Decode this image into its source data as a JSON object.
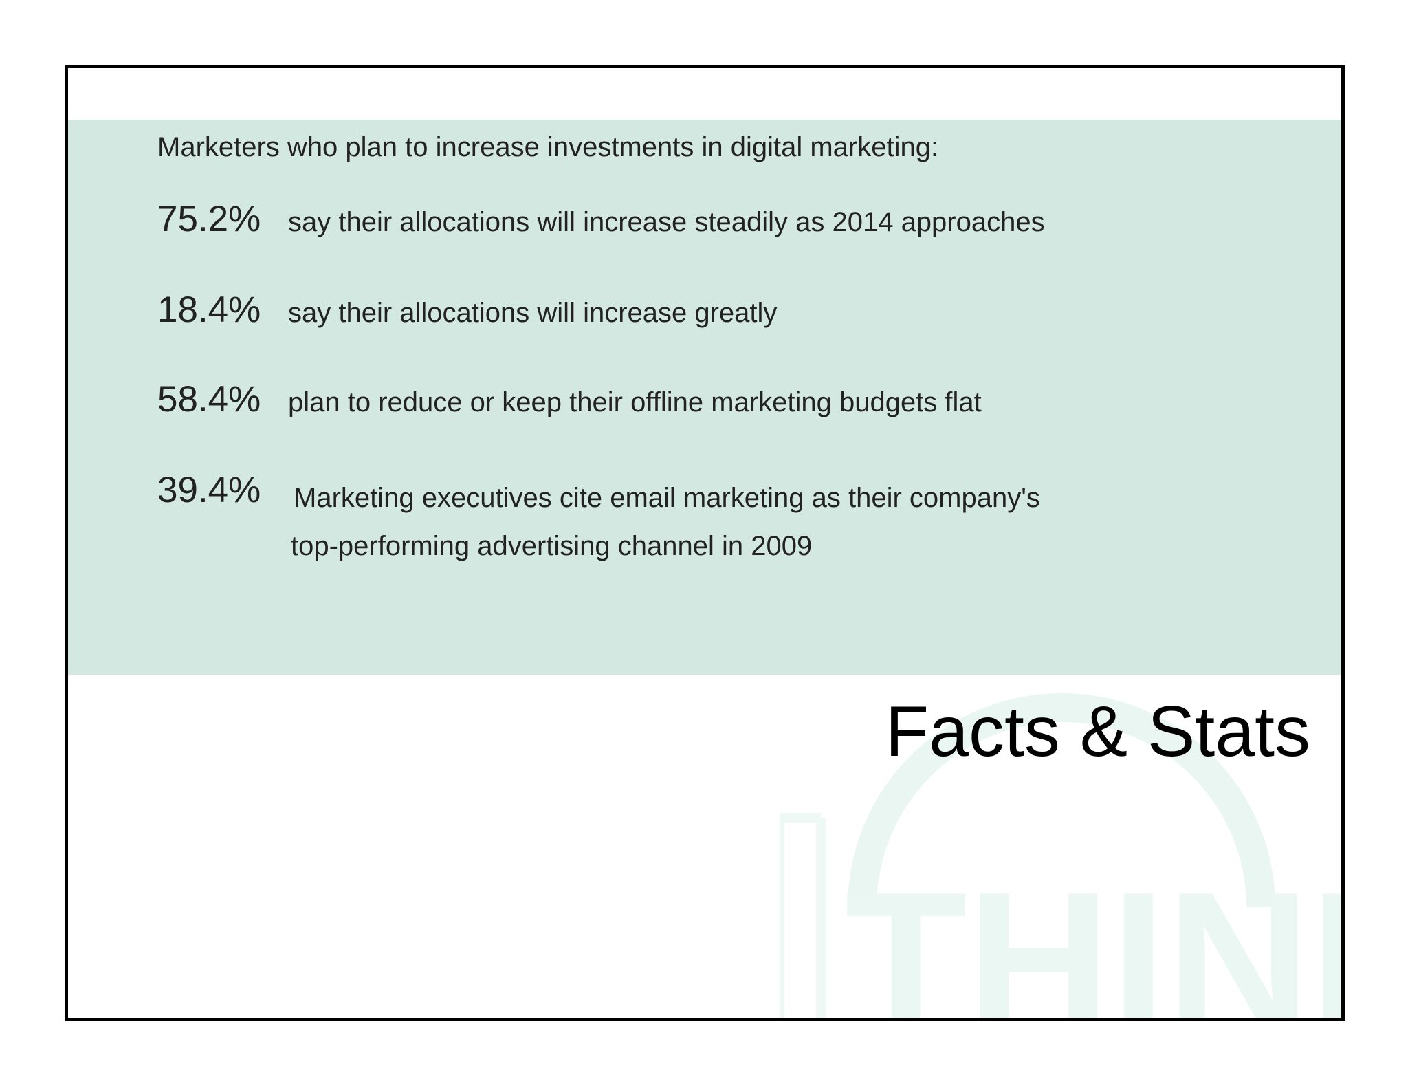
{
  "slide": {
    "title": "Facts & Stats",
    "intro": "Marketers who plan to increase investments in digital marketing:",
    "stats": [
      {
        "value": "75.2%",
        "description": "say their allocations will increase steadily as 2014 approaches"
      },
      {
        "value": "18.4%",
        "description": "say their allocations will increase greatly"
      },
      {
        "value": "58.4%",
        "description": "plan to reduce or keep their offline marketing budgets flat"
      },
      {
        "value": "39.4%",
        "description_line1": "Marketing executives cite email marketing as their company's",
        "description_line2": "top-performing advertising channel in 2009"
      }
    ],
    "watermark_text": "THINK"
  },
  "colors": {
    "panel_background": "#d3e8e1",
    "watermark": "#e9f6f2",
    "frame_border": "#000000",
    "text": "#222222"
  }
}
